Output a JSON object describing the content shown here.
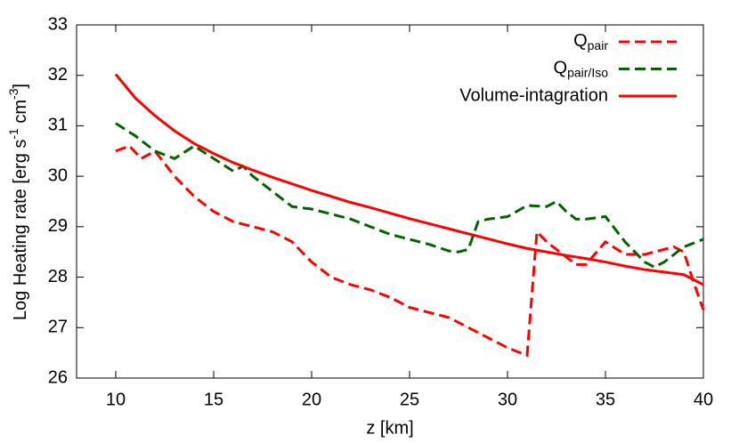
{
  "chart_data": {
    "type": "line",
    "xlabel": "z [km]",
    "ylabel": "Log Heating rate [erg s-1 cm-3]",
    "xlim": [
      8,
      40
    ],
    "ylim": [
      26,
      33
    ],
    "xticks": [
      10,
      15,
      20,
      25,
      30,
      35,
      40
    ],
    "yticks": [
      26,
      27,
      28,
      29,
      30,
      31,
      32,
      33
    ],
    "grid": false,
    "legend": "top-right",
    "series": [
      {
        "name": "Qpair",
        "subscript": "pair",
        "color": "#ff0000",
        "style": "dashed",
        "x": [
          10,
          10.7,
          11.3,
          12,
          13,
          14,
          15,
          16,
          17,
          18,
          19,
          20,
          21,
          22,
          23,
          24,
          25,
          26,
          27,
          28,
          29,
          30,
          31,
          31.5,
          32,
          33,
          33.5,
          34,
          35,
          36,
          37,
          38,
          38.5,
          39,
          39.5,
          40
        ],
        "values": [
          30.5,
          30.6,
          30.35,
          30.5,
          30.0,
          29.6,
          29.3,
          29.1,
          29.0,
          28.9,
          28.7,
          28.3,
          28.0,
          27.85,
          27.75,
          27.6,
          27.4,
          27.3,
          27.2,
          27.0,
          26.8,
          26.6,
          26.45,
          28.9,
          28.7,
          28.4,
          28.25,
          28.25,
          28.7,
          28.45,
          28.45,
          28.55,
          28.6,
          28.5,
          27.9,
          27.35
        ]
      },
      {
        "name": "Qpair/Iso",
        "subscript": "pair/Iso",
        "color": "#006400",
        "style": "dashed",
        "x": [
          10,
          11,
          12,
          13,
          14,
          15,
          16,
          16.5,
          17,
          18,
          19,
          20,
          21,
          22,
          23,
          24,
          25,
          26,
          27,
          27.5,
          28,
          28.5,
          29,
          30,
          31,
          32,
          32.5,
          33,
          33.5,
          34,
          35,
          36,
          37,
          37.5,
          38,
          39,
          40
        ],
        "values": [
          31.05,
          30.8,
          30.5,
          30.35,
          30.6,
          30.35,
          30.1,
          30.2,
          30.0,
          29.7,
          29.4,
          29.35,
          29.25,
          29.15,
          29.0,
          28.85,
          28.75,
          28.65,
          28.52,
          28.5,
          28.55,
          29.1,
          29.15,
          29.2,
          29.42,
          29.4,
          29.5,
          29.3,
          29.15,
          29.15,
          29.2,
          28.7,
          28.3,
          28.2,
          28.3,
          28.6,
          28.75
        ]
      },
      {
        "name": "Volume-intagration",
        "color": "#ff0000",
        "style": "solid",
        "x": [
          10,
          11,
          12,
          13,
          14,
          15,
          16,
          17,
          18,
          19,
          20,
          21,
          22,
          23,
          24,
          25,
          26,
          27,
          28,
          29,
          30,
          31,
          32,
          33,
          34,
          35,
          36,
          37,
          38,
          39,
          40
        ],
        "values": [
          32.02,
          31.55,
          31.2,
          30.9,
          30.65,
          30.45,
          30.27,
          30.12,
          29.98,
          29.85,
          29.72,
          29.6,
          29.48,
          29.38,
          29.27,
          29.16,
          29.06,
          28.96,
          28.86,
          28.76,
          28.66,
          28.57,
          28.5,
          28.43,
          28.37,
          28.3,
          28.22,
          28.15,
          28.1,
          28.05,
          27.85
        ]
      }
    ]
  }
}
